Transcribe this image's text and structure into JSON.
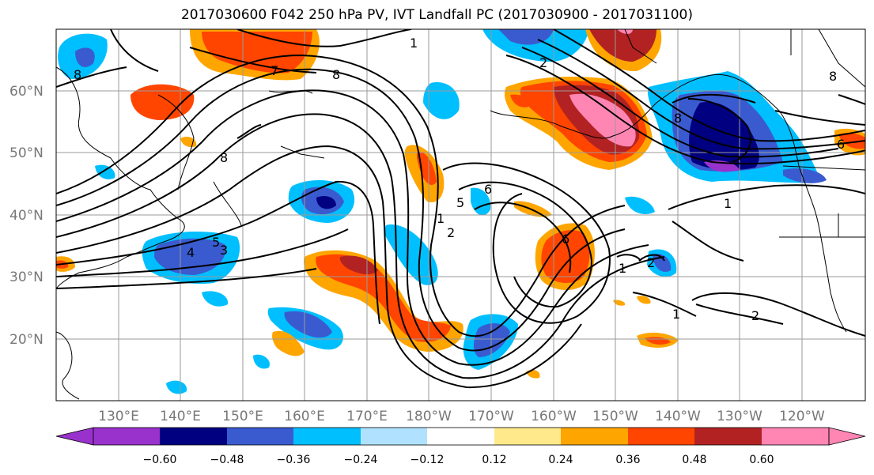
{
  "title": "2017030600 F042 250 hPa PV, IVT Landfall PC (2017030900 - 2017031100)",
  "lon_labels": [
    "130°E",
    "140°E",
    "150°E",
    "160°E",
    "170°E",
    "180°W",
    "170°W",
    "160°W",
    "150°W",
    "140°W",
    "130°W",
    "120°W"
  ],
  "lat_labels": [
    "60°N",
    "50°N",
    "40°N",
    "30°N",
    "20°N"
  ],
  "colorbar": {
    "tick_labels": [
      "−0.60",
      "−0.48",
      "−0.36",
      "−0.24",
      "−0.12",
      "0.12",
      "0.24",
      "0.36",
      "0.48",
      "0.60"
    ],
    "colors": [
      "#9932cc",
      "#000080",
      "#3a5bd0",
      "#00bfff",
      "#b0e2ff",
      "#ffffff",
      "#ffe98a",
      "#ffa500",
      "#ff4500",
      "#b22222",
      "#ff85b3"
    ]
  },
  "contour_labels": [
    "1",
    "2",
    "3",
    "4",
    "5",
    "6",
    "7",
    "8"
  ],
  "fill_colors": {
    "neg_light": "#00bfff",
    "neg_mid": "#3a5bd0",
    "neg_dark": "#000080",
    "neg_deep": "#9932cc",
    "pos_light": "#ffa500",
    "pos_mid": "#ff4500",
    "pos_dark": "#b22222",
    "pos_peak": "#ff85b3",
    "pos_faint": "#ffe98a",
    "neg_faint": "#b0e2ff"
  }
}
